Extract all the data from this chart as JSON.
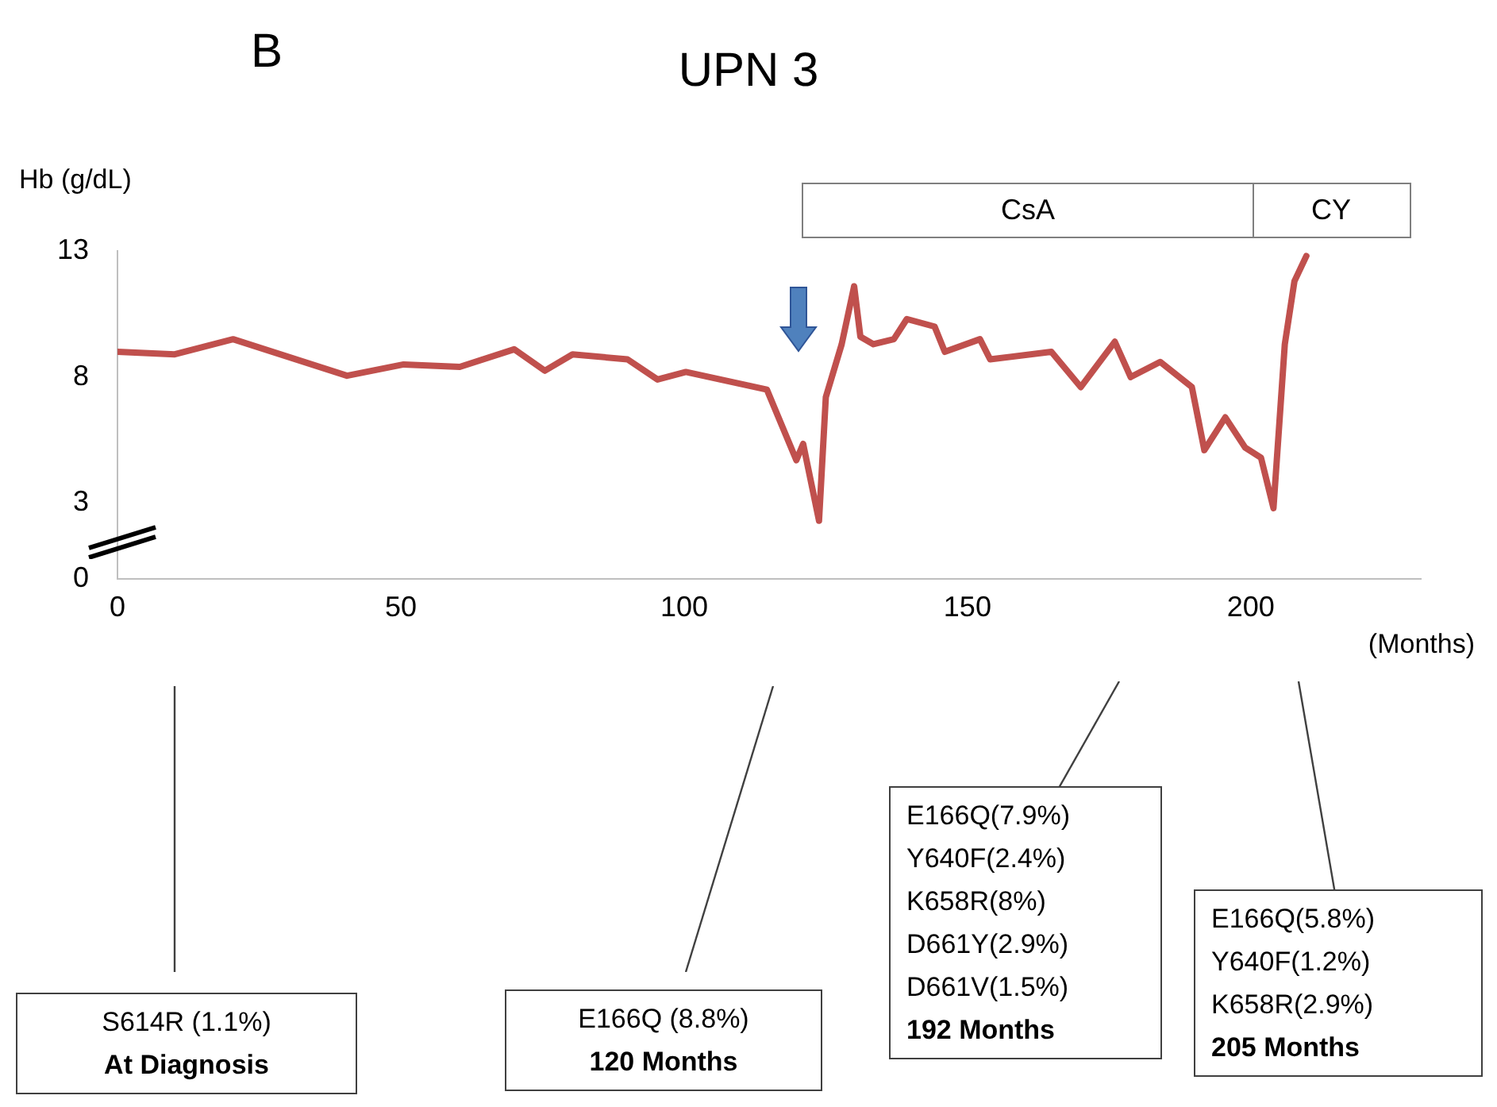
{
  "chart_data": {
    "type": "line",
    "title": "UPN 3",
    "xlabel": "(Months)",
    "ylabel": "Hb (g/dL)",
    "x": [
      0,
      10.1,
      20.4,
      40.5,
      50.5,
      60.4,
      70,
      75.4,
      80.3,
      90,
      95.3,
      100.3,
      114.6,
      119.8,
      121,
      123.8,
      125,
      127.8,
      130,
      131.1,
      133.4,
      137,
      139.3,
      144.2,
      146,
      152.2,
      154,
      164.8,
      170,
      176,
      178.8,
      184,
      189.6,
      191.8,
      195.5,
      199,
      201.8,
      204,
      206,
      207.7,
      209.8
    ],
    "series": [
      {
        "color": "#c0504d",
        "values": [
          9.0,
          8.9,
          9.5,
          8.05,
          8.5,
          8.4,
          9.1,
          8.25,
          8.9,
          8.7,
          7.9,
          8.2,
          7.5,
          4.7,
          5.35,
          2.3,
          7.2,
          9.3,
          11.6,
          9.6,
          9.3,
          9.5,
          10.3,
          10.0,
          9.0,
          9.5,
          8.7,
          9.0,
          7.6,
          9.4,
          8.0,
          8.6,
          7.6,
          5.1,
          6.4,
          5.2,
          4.8,
          2.8,
          9.3,
          11.8,
          12.8
        ]
      }
    ],
    "xlim": [
      0,
      230
    ],
    "xticks": [
      0,
      50,
      100,
      150,
      200
    ],
    "ylim": [
      0,
      13
    ],
    "yticks": [
      0,
      3,
      8,
      13
    ],
    "marker": "none",
    "line_style": "solid",
    "annotations": [
      "B",
      "S614R (1.1%)\nAt Diagnosis",
      "E166Q (8.8%)\n120 Months",
      "E166Q(7.9%)\nY640F(2.4%)\nK658R(8%)\nD661Y(2.9%)\nD661V(1.5%)\n192 Months",
      "E166Q(5.8%)\nY640F(1.2%)\nK658R(2.9%)\n205 Months",
      "CsA",
      "CY"
    ]
  }
}
